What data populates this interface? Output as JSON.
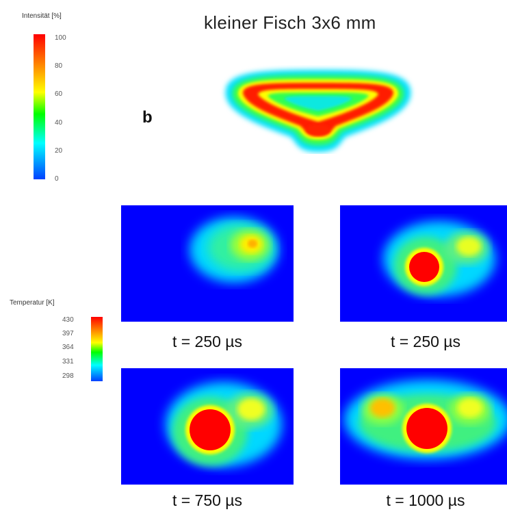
{
  "title": "kleiner Fisch 3x6 mm",
  "panel_label": "b",
  "intensity_scale": {
    "title": "Intensität [%]",
    "ticks": [
      "100",
      "80",
      "60",
      "40",
      "20",
      "0"
    ]
  },
  "temperature_scale": {
    "title": "Temperatur [K]",
    "ticks": [
      "430",
      "397",
      "364",
      "331",
      "298"
    ]
  },
  "panels": [
    {
      "caption": "t = 250 µs"
    },
    {
      "caption": "t = 250 µs"
    },
    {
      "caption": "t = 750 µs"
    },
    {
      "caption": "t = 1000 µs"
    }
  ],
  "colors": {
    "background_field": "#0000ff",
    "hot": "#ff0000",
    "warm": "#ffff00",
    "mid": "#00ff00",
    "cool": "#00ffff"
  }
}
